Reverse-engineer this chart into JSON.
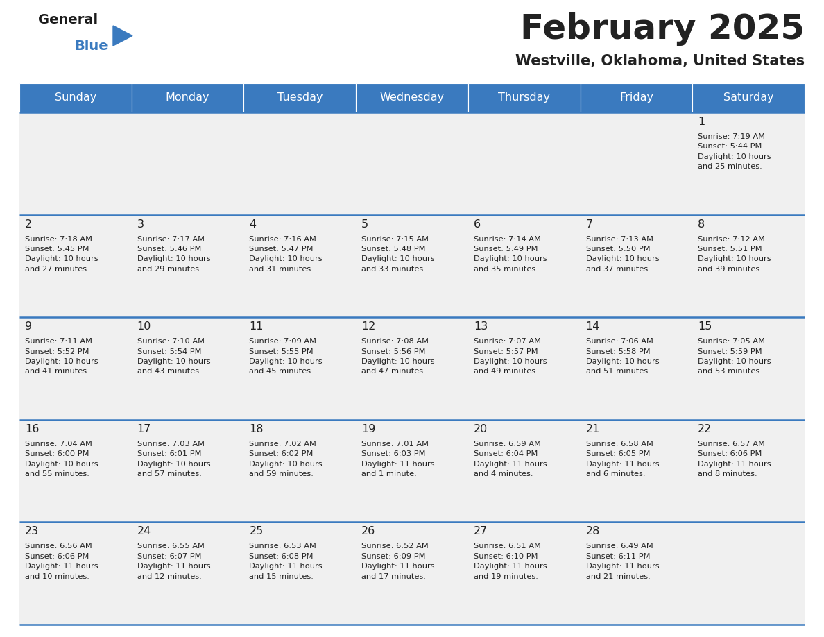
{
  "title": "February 2025",
  "subtitle": "Westville, Oklahoma, United States",
  "header_color": "#3a7abf",
  "header_text_color": "#ffffff",
  "cell_bg_color": "#f0f0f0",
  "border_color": "#3a7abf",
  "text_color": "#222222",
  "days_of_week": [
    "Sunday",
    "Monday",
    "Tuesday",
    "Wednesday",
    "Thursday",
    "Friday",
    "Saturday"
  ],
  "weeks": [
    [
      {
        "day": "",
        "info": ""
      },
      {
        "day": "",
        "info": ""
      },
      {
        "day": "",
        "info": ""
      },
      {
        "day": "",
        "info": ""
      },
      {
        "day": "",
        "info": ""
      },
      {
        "day": "",
        "info": ""
      },
      {
        "day": "1",
        "info": "Sunrise: 7:19 AM\nSunset: 5:44 PM\nDaylight: 10 hours\nand 25 minutes."
      }
    ],
    [
      {
        "day": "2",
        "info": "Sunrise: 7:18 AM\nSunset: 5:45 PM\nDaylight: 10 hours\nand 27 minutes."
      },
      {
        "day": "3",
        "info": "Sunrise: 7:17 AM\nSunset: 5:46 PM\nDaylight: 10 hours\nand 29 minutes."
      },
      {
        "day": "4",
        "info": "Sunrise: 7:16 AM\nSunset: 5:47 PM\nDaylight: 10 hours\nand 31 minutes."
      },
      {
        "day": "5",
        "info": "Sunrise: 7:15 AM\nSunset: 5:48 PM\nDaylight: 10 hours\nand 33 minutes."
      },
      {
        "day": "6",
        "info": "Sunrise: 7:14 AM\nSunset: 5:49 PM\nDaylight: 10 hours\nand 35 minutes."
      },
      {
        "day": "7",
        "info": "Sunrise: 7:13 AM\nSunset: 5:50 PM\nDaylight: 10 hours\nand 37 minutes."
      },
      {
        "day": "8",
        "info": "Sunrise: 7:12 AM\nSunset: 5:51 PM\nDaylight: 10 hours\nand 39 minutes."
      }
    ],
    [
      {
        "day": "9",
        "info": "Sunrise: 7:11 AM\nSunset: 5:52 PM\nDaylight: 10 hours\nand 41 minutes."
      },
      {
        "day": "10",
        "info": "Sunrise: 7:10 AM\nSunset: 5:54 PM\nDaylight: 10 hours\nand 43 minutes."
      },
      {
        "day": "11",
        "info": "Sunrise: 7:09 AM\nSunset: 5:55 PM\nDaylight: 10 hours\nand 45 minutes."
      },
      {
        "day": "12",
        "info": "Sunrise: 7:08 AM\nSunset: 5:56 PM\nDaylight: 10 hours\nand 47 minutes."
      },
      {
        "day": "13",
        "info": "Sunrise: 7:07 AM\nSunset: 5:57 PM\nDaylight: 10 hours\nand 49 minutes."
      },
      {
        "day": "14",
        "info": "Sunrise: 7:06 AM\nSunset: 5:58 PM\nDaylight: 10 hours\nand 51 minutes."
      },
      {
        "day": "15",
        "info": "Sunrise: 7:05 AM\nSunset: 5:59 PM\nDaylight: 10 hours\nand 53 minutes."
      }
    ],
    [
      {
        "day": "16",
        "info": "Sunrise: 7:04 AM\nSunset: 6:00 PM\nDaylight: 10 hours\nand 55 minutes."
      },
      {
        "day": "17",
        "info": "Sunrise: 7:03 AM\nSunset: 6:01 PM\nDaylight: 10 hours\nand 57 minutes."
      },
      {
        "day": "18",
        "info": "Sunrise: 7:02 AM\nSunset: 6:02 PM\nDaylight: 10 hours\nand 59 minutes."
      },
      {
        "day": "19",
        "info": "Sunrise: 7:01 AM\nSunset: 6:03 PM\nDaylight: 11 hours\nand 1 minute."
      },
      {
        "day": "20",
        "info": "Sunrise: 6:59 AM\nSunset: 6:04 PM\nDaylight: 11 hours\nand 4 minutes."
      },
      {
        "day": "21",
        "info": "Sunrise: 6:58 AM\nSunset: 6:05 PM\nDaylight: 11 hours\nand 6 minutes."
      },
      {
        "day": "22",
        "info": "Sunrise: 6:57 AM\nSunset: 6:06 PM\nDaylight: 11 hours\nand 8 minutes."
      }
    ],
    [
      {
        "day": "23",
        "info": "Sunrise: 6:56 AM\nSunset: 6:06 PM\nDaylight: 11 hours\nand 10 minutes."
      },
      {
        "day": "24",
        "info": "Sunrise: 6:55 AM\nSunset: 6:07 PM\nDaylight: 11 hours\nand 12 minutes."
      },
      {
        "day": "25",
        "info": "Sunrise: 6:53 AM\nSunset: 6:08 PM\nDaylight: 11 hours\nand 15 minutes."
      },
      {
        "day": "26",
        "info": "Sunrise: 6:52 AM\nSunset: 6:09 PM\nDaylight: 11 hours\nand 17 minutes."
      },
      {
        "day": "27",
        "info": "Sunrise: 6:51 AM\nSunset: 6:10 PM\nDaylight: 11 hours\nand 19 minutes."
      },
      {
        "day": "28",
        "info": "Sunrise: 6:49 AM\nSunset: 6:11 PM\nDaylight: 11 hours\nand 21 minutes."
      },
      {
        "day": "",
        "info": ""
      }
    ]
  ],
  "logo_text_general": "General",
  "logo_text_blue": "Blue",
  "logo_color_general": "#1a1a1a",
  "logo_color_blue": "#3a7abf",
  "logo_triangle_color": "#3a7abf",
  "fig_width": 11.88,
  "fig_height": 9.18,
  "dpi": 100
}
